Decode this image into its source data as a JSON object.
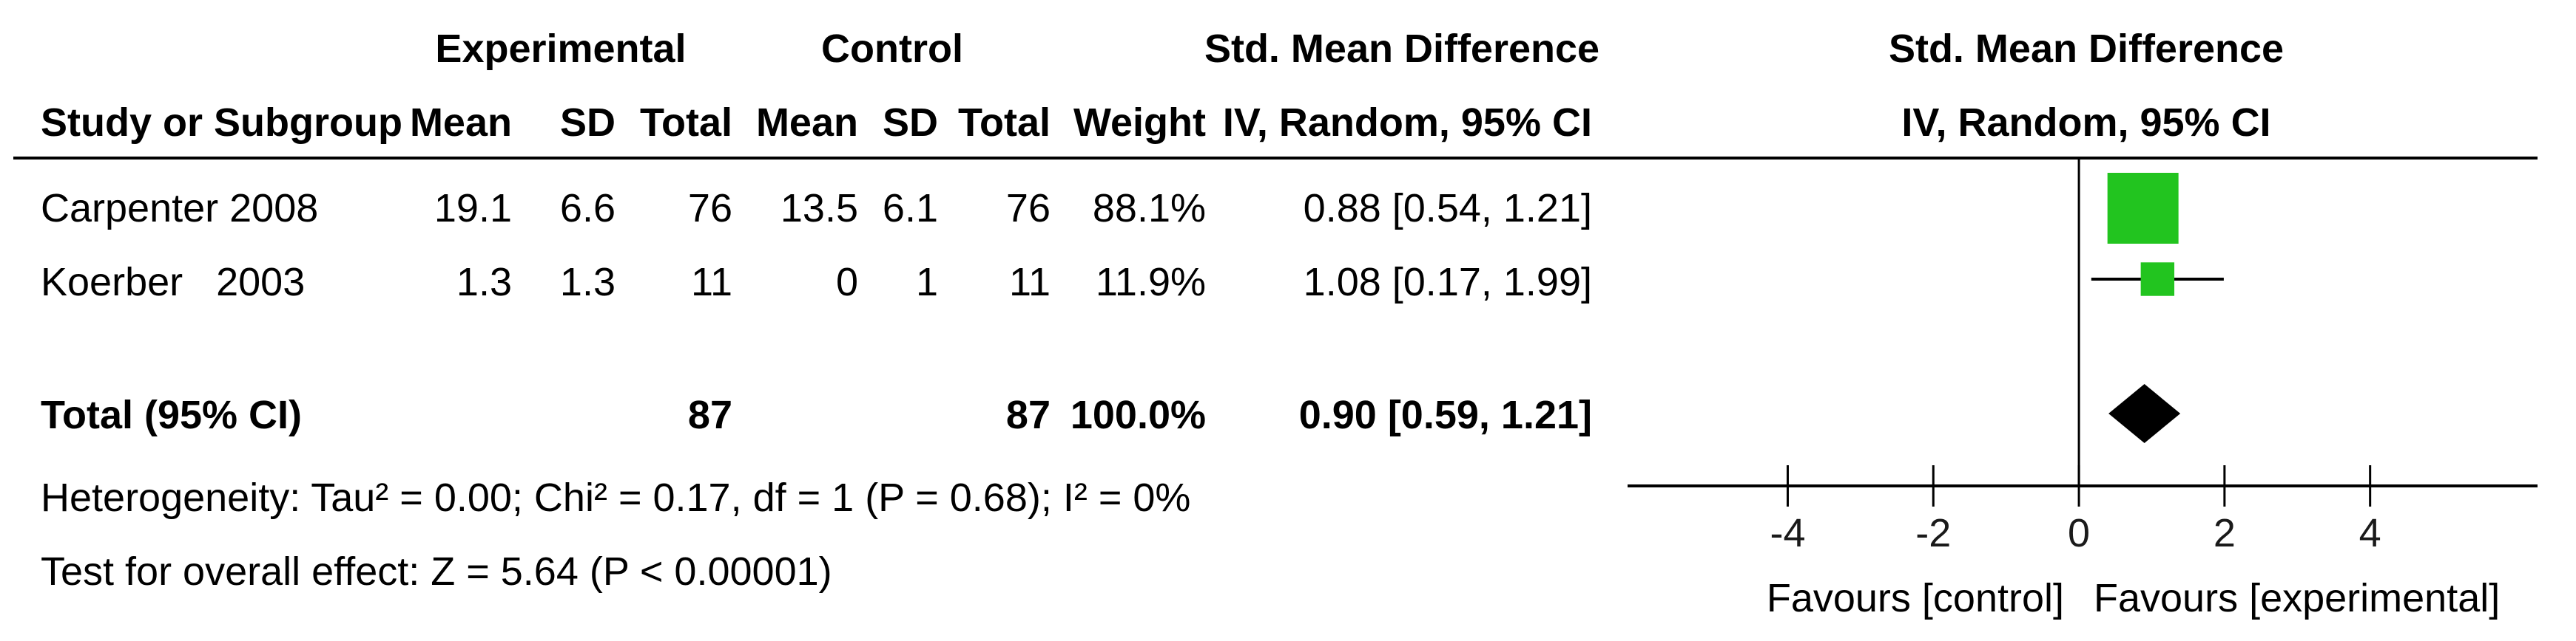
{
  "headers": {
    "group_experimental": "Experimental",
    "group_control": "Control",
    "smd_title": "Std. Mean Difference",
    "study_col": "Study or Subgroup",
    "mean_exp": "Mean",
    "sd_exp": "SD",
    "total_exp": "Total",
    "mean_ctl": "Mean",
    "sd_ctl": "SD",
    "total_ctl": "Total",
    "weight": "Weight",
    "ci_method": "IV, Random, 95% CI",
    "plot_title": "Std. Mean Difference",
    "plot_method": "IV, Random, 95% CI"
  },
  "studies": [
    {
      "name": "Carpenter 2008",
      "exp_mean": "19.1",
      "exp_sd": "6.6",
      "exp_total": "76",
      "ctl_mean": "13.5",
      "ctl_sd": "6.1",
      "ctl_total": "76",
      "weight": "88.1%",
      "ci_text": "0.88 [0.54, 1.21]"
    },
    {
      "name": "Koerber   2003",
      "exp_mean": "1.3",
      "exp_sd": "1.3",
      "exp_total": "11",
      "ctl_mean": "0",
      "ctl_sd": "1",
      "ctl_total": "11",
      "weight": "11.9%",
      "ci_text": "1.08 [0.17, 1.99]"
    }
  ],
  "total": {
    "label": "Total (95% CI)",
    "exp_total": "87",
    "ctl_total": "87",
    "weight": "100.0%",
    "ci_text": "0.90 [0.59, 1.21]"
  },
  "footer": {
    "heterogeneity": "Heterogeneity: Tau² = 0.00; Chi² = 0.17, df = 1 (P = 0.68); I² = 0%",
    "overall_effect": "Test for overall effect: Z = 5.64 (P < 0.00001)"
  },
  "chart_data": {
    "type": "forest",
    "title": "Std. Mean Difference",
    "subtitle": "IV, Random, 95% CI",
    "x_ticks": [
      -4,
      -2,
      0,
      2,
      4
    ],
    "x_tick_labels": [
      "-4",
      "-2",
      "0",
      "2",
      "4"
    ],
    "xlim": [
      -6.2,
      6.3
    ],
    "favours_left": "Favours [control]",
    "favours_right": "Favours [experimental]",
    "studies": [
      {
        "name": "Carpenter 2008",
        "estimate": 0.88,
        "lower": 0.54,
        "upper": 1.21,
        "weight": 88.1
      },
      {
        "name": "Koerber   2003",
        "estimate": 1.08,
        "lower": 0.17,
        "upper": 1.99,
        "weight": 11.9
      }
    ],
    "pooled": {
      "estimate": 0.9,
      "lower": 0.59,
      "upper": 1.21
    },
    "colors": {
      "box": "#22c41f",
      "line": "#000000",
      "diamond": "#000000"
    }
  }
}
